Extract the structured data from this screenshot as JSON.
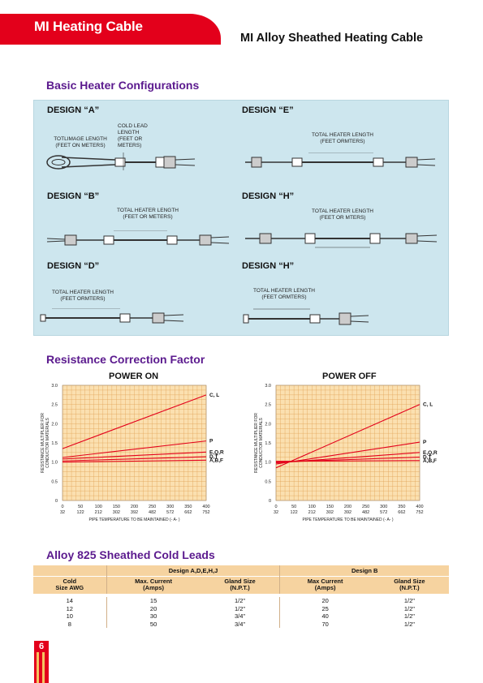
{
  "header": {
    "title": "MI Heating Cable",
    "subtitle": "MI Alloy Sheathed Heating Cable"
  },
  "sections": {
    "configs": "Basic Heater Configurations",
    "resistance": "Resistance Correction Factor",
    "cold_leads": "Alloy 825 Sheathed Cold Leads"
  },
  "designs": {
    "a": {
      "label": "DESIGN  “A”",
      "note1": "TOTLIMAGE LENGTH\n(FEET ON METERS)",
      "note2": "COLD LEAD\nLENGTH\n(FEET OR\nMETERS)"
    },
    "e": {
      "label": "DESIGN  “E”",
      "note1": "TOTAL HEATER LENGTH\n(FEET ORMTERS)"
    },
    "b": {
      "label": "DESIGN  “B”",
      "note1": "TOTAL HEATER LENGTH\n(FEET OR METERS)"
    },
    "h1": {
      "label": "DESIGN  “H”",
      "note1": "TOTAL HEATER LENGTH\n(FEET OR MTERS)"
    },
    "d": {
      "label": "DESIGN  “D”",
      "note1": "TOTAL HEATER LENGTH\n(FEET ORMTERS)"
    },
    "h2": {
      "label": "DESIGN  “H”",
      "note1": "TOTAL HEATER LENGTH\n(FEET ORMTERS)"
    }
  },
  "chart_data": [
    {
      "type": "line",
      "title": "POWER ON",
      "xlabel": "PIPE TEMPERATURE TO BE MAINTAINED (- A- )",
      "ylabel": "RESISTANCE MULTIPLIER FOR CONDUCTOR MATERIALS",
      "x_ticks_f": [
        "0",
        "50",
        "100",
        "150",
        "200",
        "250",
        "300",
        "350",
        "400"
      ],
      "x_ticks_c": [
        "32",
        "122",
        "212",
        "302",
        "392",
        "482",
        "572",
        "662",
        "752"
      ],
      "y_ticks": [
        "0",
        "0.5",
        "1.0",
        "1.5",
        "2.0",
        "2.5",
        "3.0"
      ],
      "xlim": [
        0,
        400
      ],
      "ylim": [
        0,
        3.0
      ],
      "grid": true,
      "series": [
        {
          "name": "C, L",
          "x": [
            0,
            400
          ],
          "y": [
            1.35,
            2.75
          ]
        },
        {
          "name": "P",
          "x": [
            0,
            400
          ],
          "y": [
            1.12,
            1.55
          ]
        },
        {
          "name": "E,Q,R",
          "x": [
            0,
            400
          ],
          "y": [
            1.08,
            1.26
          ]
        },
        {
          "name": "D,T",
          "x": [
            0,
            400
          ],
          "y": [
            1.03,
            1.14
          ]
        },
        {
          "name": "A,B,F",
          "x": [
            0,
            400
          ],
          "y": [
            1.0,
            1.05
          ]
        }
      ]
    },
    {
      "type": "line",
      "title": "POWER OFF",
      "xlabel": "PIPE TEMPERATURE TO BE MAINTAINED (- A- )",
      "ylabel": "RESISTANCE MULTIPLIER FOR CONDUCTOR MATERIALS",
      "x_ticks_f": [
        "0",
        "50",
        "100",
        "150",
        "200",
        "250",
        "300",
        "350",
        "400"
      ],
      "x_ticks_c": [
        "32",
        "122",
        "212",
        "302",
        "392",
        "482",
        "572",
        "662",
        "752"
      ],
      "y_ticks": [
        "0",
        "0.5",
        "1.0",
        "1.5",
        "2.0",
        "2.5",
        "3.0"
      ],
      "xlim": [
        0,
        400
      ],
      "ylim": [
        0,
        3.0
      ],
      "grid": true,
      "series": [
        {
          "name": "C, L",
          "x": [
            0,
            400
          ],
          "y": [
            0.85,
            2.5
          ]
        },
        {
          "name": "P",
          "x": [
            0,
            400
          ],
          "y": [
            0.95,
            1.52
          ]
        },
        {
          "name": "E,Q,R",
          "x": [
            0,
            400
          ],
          "y": [
            0.98,
            1.25
          ]
        },
        {
          "name": "D,T",
          "x": [
            0,
            400
          ],
          "y": [
            1.0,
            1.13
          ]
        },
        {
          "name": "A,B,F",
          "x": [
            0,
            400
          ],
          "y": [
            1.02,
            1.04
          ]
        }
      ]
    }
  ],
  "cold_leads": {
    "groups": [
      "Design A,D,E,H,J",
      "Design B"
    ],
    "headers": [
      "Cold\nSize AWG",
      "Max. Current\n(Amps)",
      "Gland Size\n(N.P.T.)",
      "Max Current\n(Amps)",
      "Gland Size\n(N.P.T.)"
    ],
    "rows": [
      [
        "14",
        "15",
        "1/2\"",
        "20",
        "1/2\""
      ],
      [
        "12",
        "20",
        "1/2\"",
        "25",
        "1/2\""
      ],
      [
        "10",
        "30",
        "3/4\"",
        "40",
        "1/2\""
      ],
      [
        "8",
        "50",
        "3/4\"",
        "70",
        "1/2\""
      ]
    ]
  },
  "page_number": "6",
  "colors": {
    "brand_red": "#e3001b",
    "section_purple": "#5b1a8e",
    "config_bg": "#cde6ee",
    "chart_bg": "#fbe0b0",
    "table_header": "#f6d3a0"
  }
}
